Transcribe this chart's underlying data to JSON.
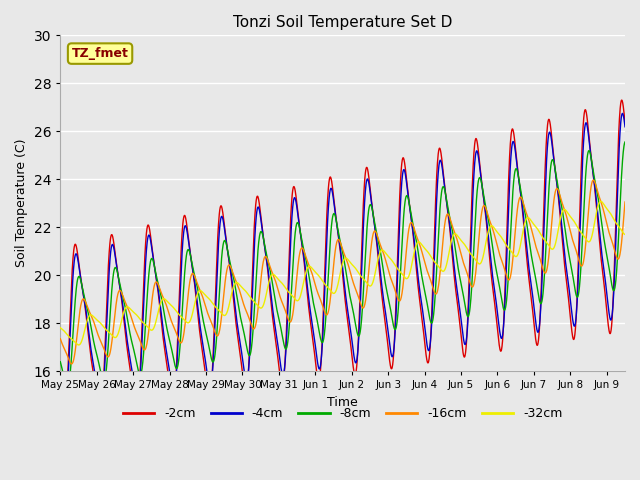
{
  "title": "Tonzi Soil Temperature Set D",
  "xlabel": "Time",
  "ylabel": "Soil Temperature (C)",
  "ylim": [
    16,
    30
  ],
  "xlim": [
    0,
    15.5
  ],
  "series_labels": [
    "-2cm",
    "-4cm",
    "-8cm",
    "-16cm",
    "-32cm"
  ],
  "series_colors": [
    "#dd0000",
    "#0000cc",
    "#00aa00",
    "#ff8800",
    "#eeee00"
  ],
  "legend_label": "TZ_fmet",
  "legend_text_color": "#880000",
  "legend_bg_color": "#ffff99",
  "legend_border_color": "#999900",
  "bg_color": "#e8e8e8",
  "plot_bg_color": "#e8e8e8",
  "grid_color": "#ffffff",
  "tick_labels": [
    "May 25",
    "May 26",
    "May 27",
    "May 28",
    "May 29",
    "May 30",
    "May 31",
    "Jun 1",
    "Jun 2",
    "Jun 3",
    "Jun 4",
    "Jun 5",
    "Jun 6",
    "Jun 7",
    "Jun 8",
    "Jun 9"
  ],
  "yticks": [
    16,
    18,
    20,
    22,
    24,
    26,
    28,
    30
  ],
  "figsize": [
    6.4,
    4.8
  ],
  "dpi": 100
}
